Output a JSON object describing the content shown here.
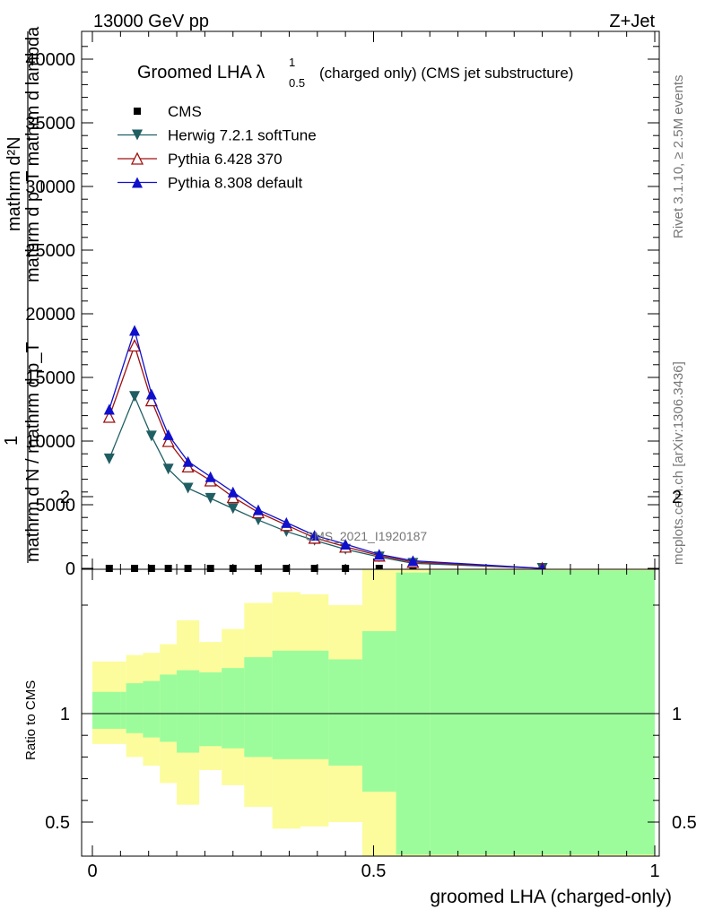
{
  "header": {
    "left": "13000 GeV pp",
    "right": "Z+Jet"
  },
  "side_labels": {
    "rivet": "Rivet 3.1.10, ≥ 2.5M events",
    "mcplots": "mcplots.cern.ch [arXiv:1306.3436]"
  },
  "chart_data": [
    {
      "type": "line",
      "title": "Groomed LHA λ",
      "title_sup": "1",
      "title_sub": "0.5",
      "title_suffix": "(charged only) (CMS jet substructure)",
      "ylabel_lines": [
        "1",
        "mathrm d N",
        "mathrm d p",
        "mathrm d p",
        "mathrm d N",
        "mathrm d lambda"
      ],
      "ylabel_parts": {
        "numerator": "mathrm d²N",
        "denominator": "mathrm d p_T mathrm d lambda",
        "prefix_num": "1",
        "prefix_den": "mathrm d N / mathrm d p_T"
      },
      "xlim": [
        0,
        1
      ],
      "ylim": [
        0,
        42000
      ],
      "yticks": [
        0,
        5000,
        10000,
        15000,
        20000,
        25000,
        30000,
        35000,
        40000
      ],
      "yticklabels": [
        "0",
        "5000",
        "10000",
        "15000",
        "20000",
        "25000",
        "30000",
        "35000",
        "40000"
      ],
      "watermark": "CMS_2021_I1920187",
      "legend_position": "top-left",
      "x": [
        0.03,
        0.075,
        0.105,
        0.135,
        0.17,
        0.21,
        0.25,
        0.295,
        0.345,
        0.395,
        0.45,
        0.51,
        0.57,
        0.8
      ],
      "series": [
        {
          "name": "CMS",
          "marker": "square",
          "color": "#000000",
          "values": [
            0,
            0,
            0,
            0,
            0,
            0,
            0,
            0,
            0,
            0,
            0,
            0,
            0,
            0
          ]
        },
        {
          "name": "Herwig 7.2.1 softTune",
          "marker": "triangle-down",
          "color": "#1f5e63",
          "values": [
            8600,
            13500,
            10400,
            7800,
            6300,
            5500,
            4700,
            3800,
            2900,
            2200,
            1500,
            900,
            400,
            0
          ]
        },
        {
          "name": "Pythia 6.428 370",
          "marker": "triangle-up-open",
          "color": "#a01010",
          "values": [
            11900,
            17500,
            13200,
            10000,
            8000,
            6900,
            5600,
            4400,
            3400,
            2400,
            1700,
            1000,
            500,
            0
          ]
        },
        {
          "name": "Pythia 8.308 default",
          "marker": "triangle-up",
          "color": "#1010cc",
          "values": [
            12500,
            18700,
            13700,
            10500,
            8400,
            7200,
            6000,
            4600,
            3600,
            2600,
            1900,
            1100,
            600,
            0
          ]
        }
      ]
    },
    {
      "type": "area",
      "ylabel": "Ratio to CMS",
      "xlabel": "groomed LHA (charged-only)",
      "xlim": [
        0,
        1
      ],
      "ylim": [
        0.35,
        2.25
      ],
      "xticks": [
        0,
        0.5,
        1
      ],
      "xticklabels": [
        "0",
        "0.5",
        "1"
      ],
      "yticks": [
        0.5,
        1,
        2
      ],
      "yticklabels": [
        "0.5",
        "1",
        "2"
      ],
      "bin_edges": [
        0,
        0.05,
        0.06,
        0.09,
        0.12,
        0.15,
        0.19,
        0.23,
        0.27,
        0.32,
        0.37,
        0.42,
        0.48,
        0.54,
        0.6,
        1.0
      ],
      "bins": [
        {
          "lo": 0.0,
          "hi": 0.05,
          "inner_lo": 0.93,
          "inner_hi": 1.1,
          "outer_lo": 0.86,
          "outer_hi": 1.24
        },
        {
          "lo": 0.05,
          "hi": 0.06,
          "inner_lo": 0.93,
          "inner_hi": 1.1,
          "outer_lo": 0.86,
          "outer_hi": 1.24
        },
        {
          "lo": 0.06,
          "hi": 0.09,
          "inner_lo": 0.91,
          "inner_hi": 1.14,
          "outer_lo": 0.8,
          "outer_hi": 1.27
        },
        {
          "lo": 0.09,
          "hi": 0.12,
          "inner_lo": 0.89,
          "inner_hi": 1.15,
          "outer_lo": 0.76,
          "outer_hi": 1.28
        },
        {
          "lo": 0.12,
          "hi": 0.15,
          "inner_lo": 0.87,
          "inner_hi": 1.18,
          "outer_lo": 0.68,
          "outer_hi": 1.32
        },
        {
          "lo": 0.15,
          "hi": 0.19,
          "inner_lo": 0.82,
          "inner_hi": 1.2,
          "outer_lo": 0.58,
          "outer_hi": 1.43
        },
        {
          "lo": 0.19,
          "hi": 0.23,
          "inner_lo": 0.85,
          "inner_hi": 1.19,
          "outer_lo": 0.74,
          "outer_hi": 1.33
        },
        {
          "lo": 0.23,
          "hi": 0.27,
          "inner_lo": 0.84,
          "inner_hi": 1.21,
          "outer_lo": 0.67,
          "outer_hi": 1.39
        },
        {
          "lo": 0.27,
          "hi": 0.32,
          "inner_lo": 0.8,
          "inner_hi": 1.26,
          "outer_lo": 0.57,
          "outer_hi": 1.51
        },
        {
          "lo": 0.32,
          "hi": 0.37,
          "inner_lo": 0.79,
          "inner_hi": 1.29,
          "outer_lo": 0.47,
          "outer_hi": 1.56
        },
        {
          "lo": 0.37,
          "hi": 0.42,
          "inner_lo": 0.79,
          "inner_hi": 1.29,
          "outer_lo": 0.48,
          "outer_hi": 1.55
        },
        {
          "lo": 0.42,
          "hi": 0.48,
          "inner_lo": 0.76,
          "inner_hi": 1.25,
          "outer_lo": 0.5,
          "outer_hi": 1.5
        },
        {
          "lo": 0.48,
          "hi": 0.54,
          "inner_lo": 0.64,
          "inner_hi": 1.38,
          "outer_lo": 0.2,
          "outer_hi": 1.82
        },
        {
          "lo": 0.54,
          "hi": 0.6,
          "inner_lo": 0.35,
          "inner_hi": 1.65,
          "outer_lo": 0.0,
          "outer_hi": 2.1
        },
        {
          "lo": 0.6,
          "hi": 1.0,
          "inner_lo": 0.35,
          "inner_hi": 1.66,
          "outer_lo": 0.0,
          "outer_hi": 2.11
        }
      ],
      "colors": {
        "inner": "#9cfc9c",
        "outer": "#fcfc9c",
        "line": "#000000"
      }
    }
  ]
}
